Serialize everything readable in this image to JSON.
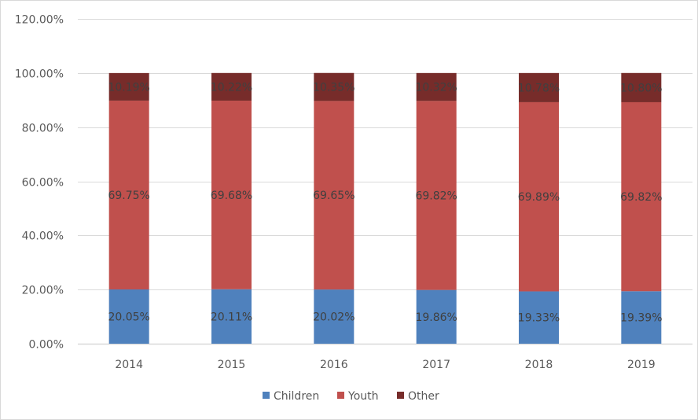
{
  "chart_data": {
    "type": "bar",
    "stacked": true,
    "title": "",
    "xlabel": "",
    "ylabel": "",
    "categories": [
      "2014",
      "2015",
      "2016",
      "2017",
      "2018",
      "2019"
    ],
    "series": [
      {
        "name": "Children",
        "color": "#4f81bd",
        "values": [
          20.05,
          20.11,
          20.02,
          19.86,
          19.33,
          19.39
        ],
        "labels": [
          "20.05%",
          "20.11%",
          "20.02%",
          "19.86%",
          "19.33%",
          "19.39%"
        ]
      },
      {
        "name": "Youth",
        "color": "#c0504d",
        "values": [
          69.75,
          69.68,
          69.65,
          69.82,
          69.89,
          69.82
        ],
        "labels": [
          "69.75%",
          "69.68%",
          "69.65%",
          "69.82%",
          "69.89%",
          "69.82%"
        ]
      },
      {
        "name": "Other",
        "color": "#772c2a",
        "values": [
          10.19,
          10.22,
          10.35,
          10.32,
          10.78,
          10.8
        ],
        "labels": [
          "10.19%",
          "10.22%",
          "10.35%",
          "10.32%",
          "10.78%",
          "10.80%"
        ]
      }
    ],
    "ylim": [
      0,
      120
    ],
    "yticks": [
      0,
      20,
      40,
      60,
      80,
      100,
      120
    ],
    "ytick_labels": [
      "0.00%",
      "20.00%",
      "40.00%",
      "60.00%",
      "80.00%",
      "100.00%",
      "120.00%"
    ],
    "grid": true,
    "legend": {
      "position": "bottom",
      "entries": [
        "Children",
        "Youth",
        "Other"
      ]
    },
    "gridline_color": "#d9d9d9"
  }
}
